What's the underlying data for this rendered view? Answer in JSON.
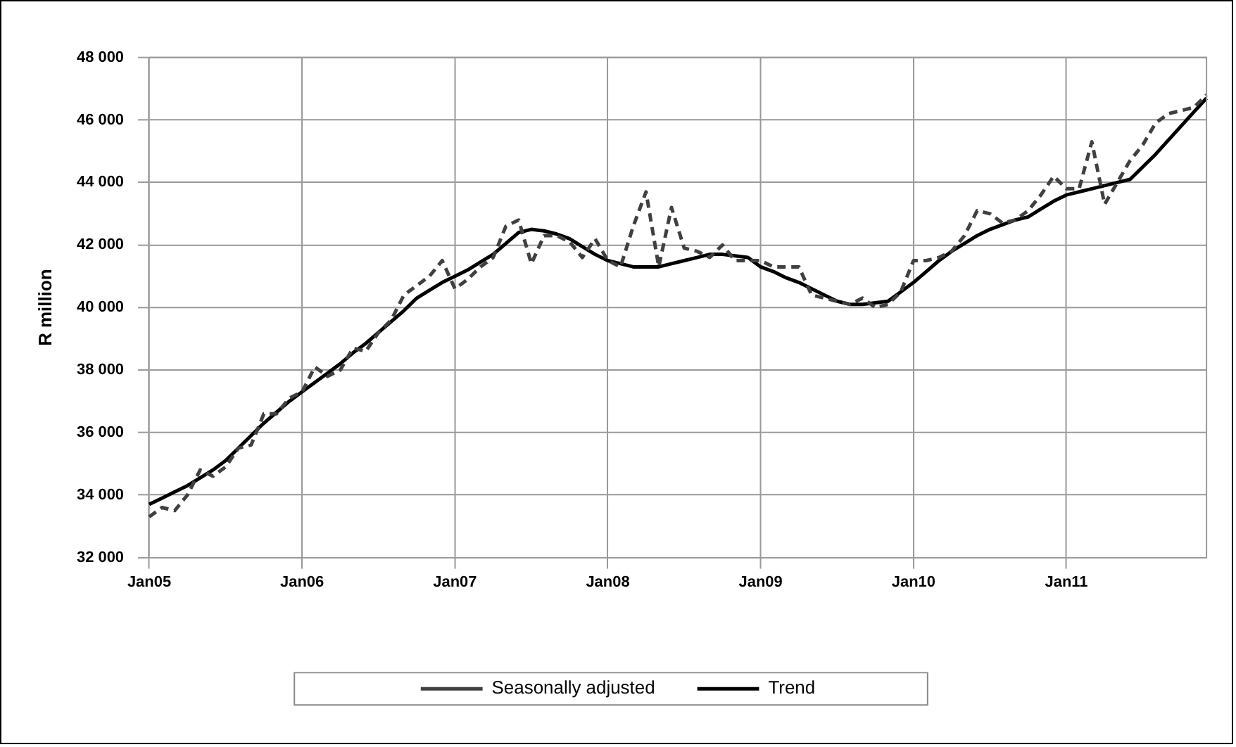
{
  "chart_data": {
    "type": "line",
    "ylabel": "R million",
    "categories": [
      "Jan05",
      null,
      null,
      null,
      null,
      null,
      null,
      null,
      null,
      null,
      null,
      null,
      "Jan06",
      null,
      null,
      null,
      null,
      null,
      null,
      null,
      null,
      null,
      null,
      null,
      "Jan07",
      null,
      null,
      null,
      null,
      null,
      null,
      null,
      null,
      null,
      null,
      null,
      "Jan08",
      null,
      null,
      null,
      null,
      null,
      null,
      null,
      null,
      null,
      null,
      null,
      "Jan09",
      null,
      null,
      null,
      null,
      null,
      null,
      null,
      null,
      null,
      null,
      null,
      "Jan10",
      null,
      null,
      null,
      null,
      null,
      null,
      null,
      null,
      null,
      null,
      null,
      "Jan11",
      null,
      null,
      null,
      null,
      null,
      null,
      null,
      null,
      null,
      null,
      null
    ],
    "ylim": [
      32000,
      48000
    ],
    "yticks": [
      {
        "value": 32000,
        "label": "32 000"
      },
      {
        "value": 34000,
        "label": "34 000"
      },
      {
        "value": 36000,
        "label": "36 000"
      },
      {
        "value": 38000,
        "label": "38 000"
      },
      {
        "value": 40000,
        "label": "40 000"
      },
      {
        "value": 42000,
        "label": "42 000"
      },
      {
        "value": 44000,
        "label": "44 000"
      },
      {
        "value": 46000,
        "label": "46 000"
      },
      {
        "value": 48000,
        "label": "48 000"
      }
    ],
    "grid": true,
    "legend": "bottom",
    "marker": "none",
    "series": [
      {
        "name": "Seasonally adjusted",
        "color": "#404040",
        "line_style": "dashed",
        "values": [
          33300,
          33600,
          33500,
          34000,
          34800,
          34600,
          34900,
          35500,
          35600,
          36600,
          36600,
          37100,
          37300,
          38100,
          37800,
          38000,
          38700,
          38600,
          39200,
          39600,
          40400,
          40700,
          41000,
          41500,
          40600,
          40900,
          41300,
          41600,
          42600,
          42800,
          41400,
          42300,
          42300,
          42100,
          41600,
          42200,
          41500,
          41300,
          42600,
          43700,
          41300,
          43200,
          41900,
          41800,
          41600,
          42000,
          41500,
          41500,
          41500,
          41300,
          41300,
          41300,
          40400,
          40300,
          40200,
          40100,
          40300,
          40000,
          40100,
          40500,
          41500,
          41500,
          41600,
          41800,
          42300,
          43100,
          43000,
          42700,
          42800,
          43100,
          43600,
          44200,
          43800,
          43800,
          45300,
          43300,
          44000,
          44700,
          45200,
          45900,
          46200,
          46300,
          46400,
          46800
        ]
      },
      {
        "name": "Trend",
        "color": "#000000",
        "line_style": "solid",
        "values": [
          33700,
          33900,
          34100,
          34300,
          34550,
          34800,
          35100,
          35500,
          35900,
          36300,
          36650,
          37000,
          37300,
          37600,
          37900,
          38200,
          38550,
          38850,
          39200,
          39550,
          39900,
          40300,
          40550,
          40800,
          41000,
          41200,
          41450,
          41700,
          42050,
          42400,
          42500,
          42450,
          42350,
          42200,
          41950,
          41700,
          41500,
          41400,
          41300,
          41300,
          41300,
          41400,
          41500,
          41600,
          41700,
          41700,
          41650,
          41600,
          41300,
          41150,
          40950,
          40800,
          40600,
          40400,
          40200,
          40100,
          40100,
          40150,
          40200,
          40500,
          40800,
          41150,
          41500,
          41800,
          42050,
          42300,
          42500,
          42650,
          42800,
          42900,
          43150,
          43400,
          43600,
          43700,
          43800,
          43900,
          44000,
          44100,
          44500,
          44900,
          45350,
          45800,
          46250,
          46700
        ]
      }
    ]
  }
}
